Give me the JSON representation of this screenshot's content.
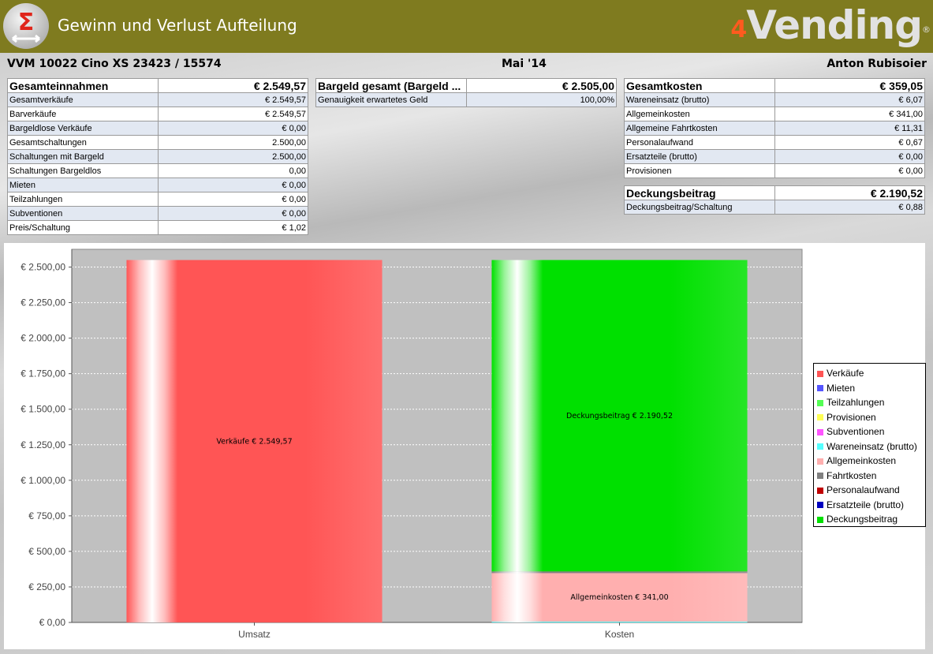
{
  "window": {
    "title": "Gewinn und Verlust Aufteilung",
    "brand_prefix": "4",
    "brand": "Vending",
    "brand_reg": "®"
  },
  "header": {
    "machine": "VVM 10022 Cino XS 23423 / 15574",
    "period": "Mai '14",
    "person": "Anton Rubisoier"
  },
  "income": {
    "title": "Gesamteinnahmen",
    "total": "€ 2.549,57",
    "rows": [
      {
        "label": "Gesamtverkäufe",
        "value": "€ 2.549,57"
      },
      {
        "label": "Barverkäufe",
        "value": "€ 2.549,57"
      },
      {
        "label": "Bargeldlose Verkäufe",
        "value": "€ 0,00"
      },
      {
        "label": "Gesamtschaltungen",
        "value": "2.500,00"
      },
      {
        "label": "Schaltungen mit Bargeld",
        "value": "2.500,00"
      },
      {
        "label": "Schaltungen Bargeldlos",
        "value": "0,00"
      },
      {
        "label": "Mieten",
        "value": "€ 0,00"
      },
      {
        "label": "Teilzahlungen",
        "value": "€ 0,00"
      },
      {
        "label": "Subventionen",
        "value": "€ 0,00"
      },
      {
        "label": "Preis/Schaltung",
        "value": "€ 1,02"
      }
    ]
  },
  "cash": {
    "title": "Bargeld gesamt (Bargeld ...",
    "total": "€ 2.505,00",
    "rows": [
      {
        "label": "Genauigkeit erwartetes Geld",
        "value": "100,00%"
      }
    ]
  },
  "costs": {
    "title": "Gesamtkosten",
    "total": "€ 359,05",
    "rows": [
      {
        "label": "Wareneinsatz (brutto)",
        "value": "€ 6,07"
      },
      {
        "label": "Allgemeinkosten",
        "value": "€ 341,00"
      },
      {
        "label": "Allgemeine Fahrtkosten",
        "value": "€ 11,31"
      },
      {
        "label": "Personalaufwand",
        "value": "€ 0,67"
      },
      {
        "label": "Ersatzteile (brutto)",
        "value": "€ 0,00"
      },
      {
        "label": "Provisionen",
        "value": "€ 0,00"
      }
    ]
  },
  "margin": {
    "title": "Deckungsbeitrag",
    "total": "€ 2.190,52",
    "rows": [
      {
        "label": "Deckungsbeitrag/Schaltung",
        "value": "€ 0,88"
      }
    ]
  },
  "chart_data": {
    "type": "bar",
    "stacked": true,
    "categories": [
      "Umsatz",
      "Kosten"
    ],
    "ylim": [
      0,
      2625
    ],
    "yticks": [
      0,
      250,
      500,
      750,
      1000,
      1250,
      1500,
      1750,
      2000,
      2250,
      2500
    ],
    "ytick_labels": [
      "€ 0,00",
      "€ 250,00",
      "€ 500,00",
      "€ 750,00",
      "€ 1.000,00",
      "€ 1.250,00",
      "€ 1.500,00",
      "€ 1.750,00",
      "€ 2.000,00",
      "€ 2.250,00",
      "€ 2.500,00"
    ],
    "grid": true,
    "legend_position": "right",
    "series": [
      {
        "name": "Verkäufe",
        "color": "#ff5555",
        "values": [
          2549.57,
          0
        ]
      },
      {
        "name": "Mieten",
        "color": "#5555ff",
        "values": [
          0,
          0
        ]
      },
      {
        "name": "Teilzahlungen",
        "color": "#55ff55",
        "values": [
          0,
          0
        ]
      },
      {
        "name": "Provisionen",
        "color": "#ffff55",
        "values": [
          0,
          0
        ]
      },
      {
        "name": "Subventionen",
        "color": "#ff55ff",
        "values": [
          0,
          0
        ]
      },
      {
        "name": "Wareneinsatz (brutto)",
        "color": "#55ffff",
        "values": [
          0,
          6.07
        ]
      },
      {
        "name": "Allgemeinkosten",
        "color": "#ffafaf",
        "values": [
          0,
          341.0
        ]
      },
      {
        "name": "Fahrtkosten",
        "color": "#808080",
        "values": [
          0,
          11.31
        ]
      },
      {
        "name": "Personalaufwand",
        "color": "#c00000",
        "values": [
          0,
          0.67
        ]
      },
      {
        "name": "Ersatzteile (brutto)",
        "color": "#0000c0",
        "values": [
          0,
          0
        ]
      },
      {
        "name": "Deckungsbeitrag",
        "color": "#00e000",
        "values": [
          0,
          2190.52
        ]
      }
    ],
    "data_labels": [
      {
        "series": "Verkäufe",
        "category": "Umsatz",
        "text": "Verkäufe € 2.549,57"
      },
      {
        "series": "Deckungsbeitrag",
        "category": "Kosten",
        "text": "Deckungsbeitrag € 2.190,52"
      },
      {
        "series": "Allgemeinkosten",
        "category": "Kosten",
        "text": "Allgemeinkosten € 341,00"
      }
    ]
  }
}
